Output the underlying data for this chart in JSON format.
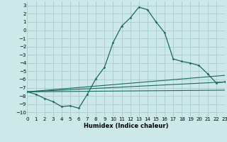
{
  "xlabel": "Humidex (Indice chaleur)",
  "xlim": [
    0,
    23
  ],
  "ylim": [
    -10.5,
    3.5
  ],
  "yticks": [
    3,
    2,
    1,
    0,
    -1,
    -2,
    -3,
    -4,
    -5,
    -6,
    -7,
    -8,
    -9,
    -10
  ],
  "xticks": [
    0,
    1,
    2,
    3,
    4,
    5,
    6,
    7,
    8,
    9,
    10,
    11,
    12,
    13,
    14,
    15,
    16,
    17,
    18,
    19,
    20,
    21,
    22,
    23
  ],
  "bg_color": "#cce8e8",
  "grid_color": "#aacccc",
  "line_color": "#1a6b5a",
  "main_x": [
    0,
    1,
    2,
    3,
    4,
    5,
    6,
    7,
    8,
    9,
    10,
    11,
    12,
    13,
    14,
    15,
    16,
    17,
    18,
    19,
    20,
    21,
    22,
    23
  ],
  "main_y": [
    -7.5,
    -7.8,
    -8.3,
    -8.7,
    -9.3,
    -9.2,
    -9.5,
    -7.8,
    -5.9,
    -4.5,
    -1.5,
    0.5,
    1.5,
    2.8,
    2.5,
    1.0,
    -0.3,
    -3.5,
    -3.8,
    -4.0,
    -4.3,
    -5.3,
    -6.4,
    -6.3
  ],
  "trend1_x": [
    0,
    23
  ],
  "trend1_y": [
    -7.5,
    -6.3
  ],
  "trend2_x": [
    0,
    23
  ],
  "trend2_y": [
    -7.5,
    -5.5
  ],
  "trend3_x": [
    0,
    23
  ],
  "trend3_y": [
    -7.5,
    -7.3
  ]
}
